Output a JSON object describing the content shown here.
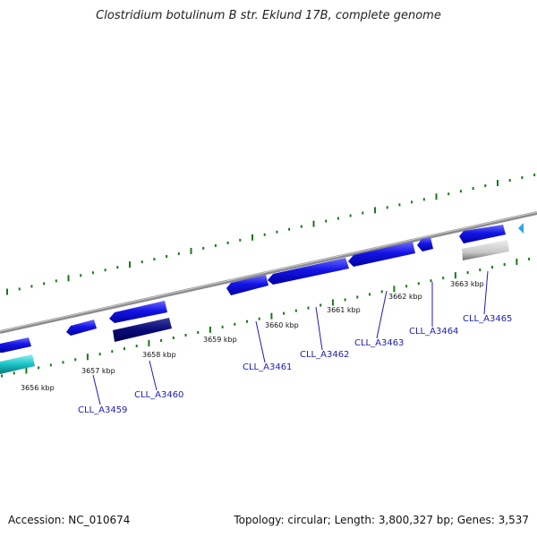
{
  "title": "Clostridium botulinum B str. Eklund 17B, complete genome",
  "footer": {
    "accession": "Accession: NC_010674",
    "stats": "Topology: circular; Length: 3,800,327 bp; Genes: 3,537"
  },
  "colors": {
    "backbone": "#8c8c8c",
    "gene_blue": "#1414e6",
    "gene_navy": "#0a0a78",
    "gene_cyan": "#19c3c8",
    "gene_gray": "#c8c8c8",
    "scale_green": "#197819",
    "label_blue": "#1c1cb4"
  },
  "scale_labels": [
    "3656 kbp",
    "3657 kbp",
    "3658 kbp",
    "3659 kbp",
    "3660 kbp",
    "3661 kbp",
    "3662 kbp",
    "3663 kbp"
  ],
  "gene_labels": [
    "CLL_A3459",
    "CLL_A3460",
    "CLL_A3461",
    "CLL_A3462",
    "CLL_A3463",
    "CLL_A3464",
    "CLL_A3465"
  ]
}
